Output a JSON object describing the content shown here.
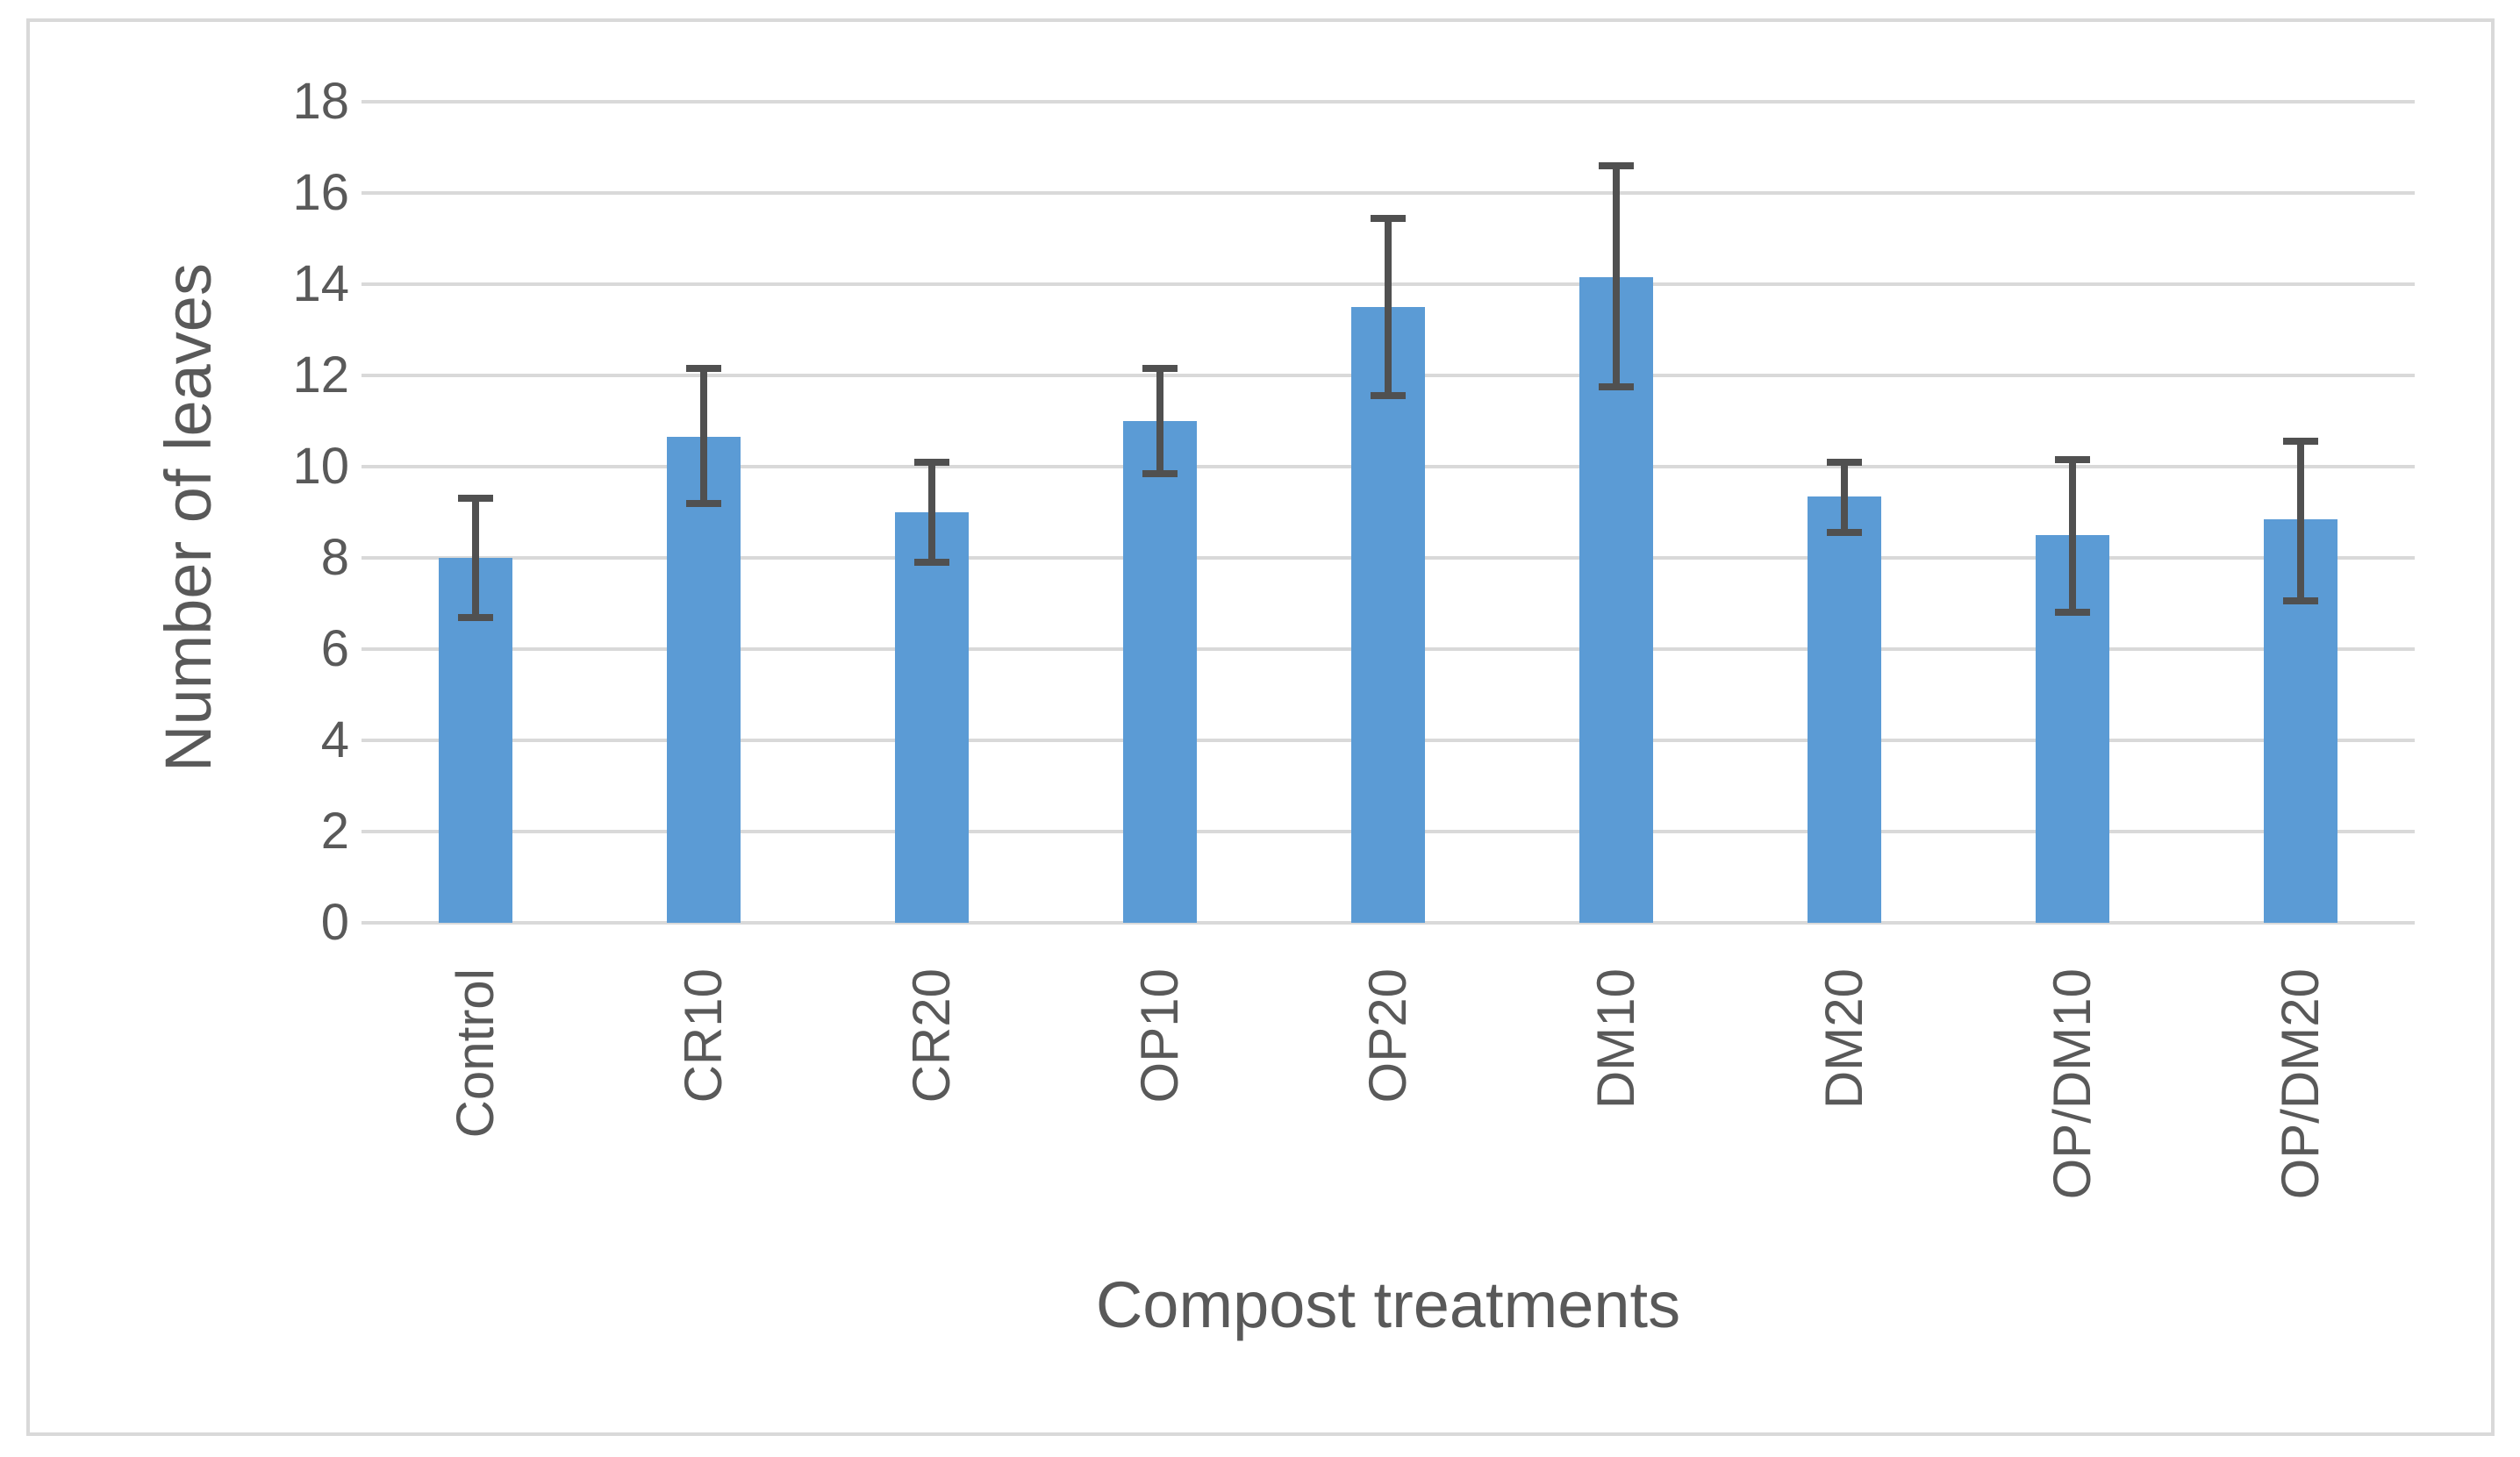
{
  "chart_data": {
    "type": "bar",
    "title": "",
    "xlabel": "Compost treatments",
    "ylabel": "Number of leaves",
    "categories": [
      "Control",
      "CR10",
      "CR20",
      "OP10",
      "OP20",
      "DM10",
      "DM20",
      "OP/DM10",
      "OP/DM20"
    ],
    "values": [
      8.0,
      10.65,
      9.0,
      11.0,
      13.5,
      14.15,
      9.35,
      8.5,
      8.85
    ],
    "error_bar_low": [
      6.7,
      9.2,
      7.9,
      9.85,
      11.55,
      11.75,
      8.55,
      6.8,
      7.05
    ],
    "error_bar_high": [
      9.3,
      12.15,
      10.1,
      12.15,
      15.45,
      16.6,
      10.1,
      10.15,
      10.55
    ],
    "ylim": [
      0,
      18
    ],
    "ytick_step": 2,
    "ytick_labels": [
      "0",
      "2",
      "4",
      "6",
      "8",
      "10",
      "12",
      "14",
      "16",
      "18"
    ],
    "grid": "horizontal",
    "legend": "none",
    "bar_color": "#5B9BD5",
    "error_color": "#505050",
    "grid_color": "#D9D9D9",
    "border_color": "#D9D9D9",
    "text_color": "#595959"
  }
}
